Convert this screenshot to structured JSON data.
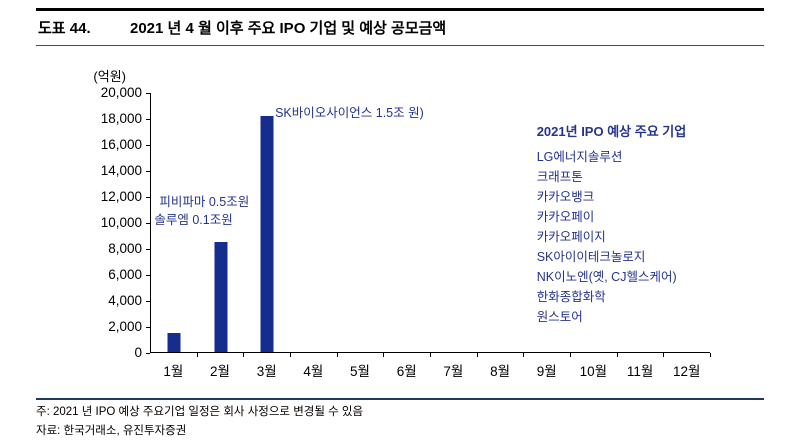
{
  "header": {
    "label": "도표 44.",
    "title": "2021 년 4 월 이후 주요 IPO 기업 및 예상 공모금액"
  },
  "chart_data": {
    "type": "bar",
    "title": "2021 년 4 월 이후 주요 IPO 기업 및 예상 공모금액",
    "unit_label": "(억원)",
    "categories": [
      "1월",
      "2월",
      "3월",
      "4월",
      "5월",
      "6월",
      "7월",
      "8월",
      "9월",
      "10월",
      "11월",
      "12월"
    ],
    "values": [
      1500,
      8500,
      18200,
      0,
      0,
      0,
      0,
      0,
      0,
      0,
      0,
      0
    ],
    "ylim": [
      0,
      20000
    ],
    "ytick_step": 2000,
    "grid": false,
    "bar_color": "#152e8e",
    "text_navy": "#24338c",
    "rule_navy": "#1f3864",
    "annotations": [
      {
        "text": "피비파마 0.5조원",
        "month": "2월",
        "y": 11500
      },
      {
        "text": "솔루엠 0.1조원",
        "month": "2월",
        "y": 10200
      },
      {
        "text": "SK바이오사이언스 1.5조 원)",
        "month": "3월",
        "y": 18200
      }
    ],
    "legend_box": {
      "title": "2021년 IPO 예상 주요 기업",
      "items": [
        "LG에너지솔루션",
        "크래프톤",
        "카카오뱅크",
        "카카오페이",
        "카카오페이지",
        "SK아이이테크놀로지",
        "NK이노엔(옛, CJ헬스케어)",
        "한화종합화학",
        "원스토어"
      ]
    }
  },
  "footer": {
    "note": "주: 2021 년 IPO 예상 주요기업 일정은 회사 사정으로 변경될 수 있음",
    "source": "자료: 한국거래소, 유진투자증권"
  }
}
